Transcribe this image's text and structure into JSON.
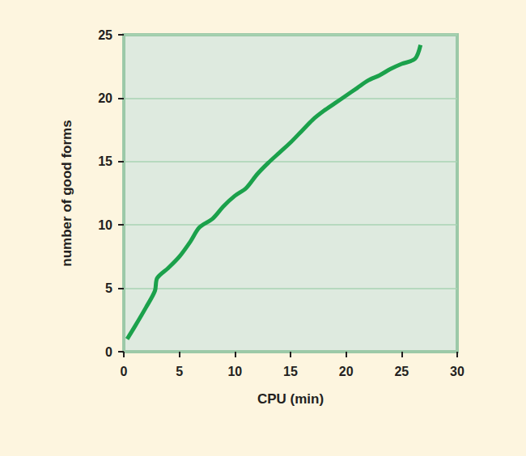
{
  "chart_data": {
    "type": "line",
    "x_label": "CPU (min)",
    "y_label": "number of good forms",
    "x": [
      0.3,
      1,
      2,
      2.8,
      3,
      4,
      5,
      6,
      6.8,
      8,
      9,
      10,
      11,
      12,
      13,
      14,
      15,
      16,
      17,
      18,
      19,
      20,
      21,
      22,
      23,
      24,
      25,
      26.2,
      26.7
    ],
    "values": [
      1,
      2,
      3.5,
      4.8,
      5.8,
      6.6,
      7.5,
      8.7,
      9.8,
      10.5,
      11.5,
      12.3,
      12.9,
      14,
      14.9,
      15.7,
      16.5,
      17.4,
      18.3,
      19,
      19.6,
      20.2,
      20.8,
      21.4,
      21.8,
      22.3,
      22.7,
      23.1,
      24.2
    ],
    "color": "#1ba14b",
    "xlim": [
      0,
      30
    ],
    "xticks": [
      0,
      5,
      10,
      15,
      20,
      25,
      30
    ],
    "ylim": [
      0,
      25
    ],
    "yticks": [
      0,
      5,
      10,
      15,
      20,
      25
    ],
    "grid": true
  }
}
